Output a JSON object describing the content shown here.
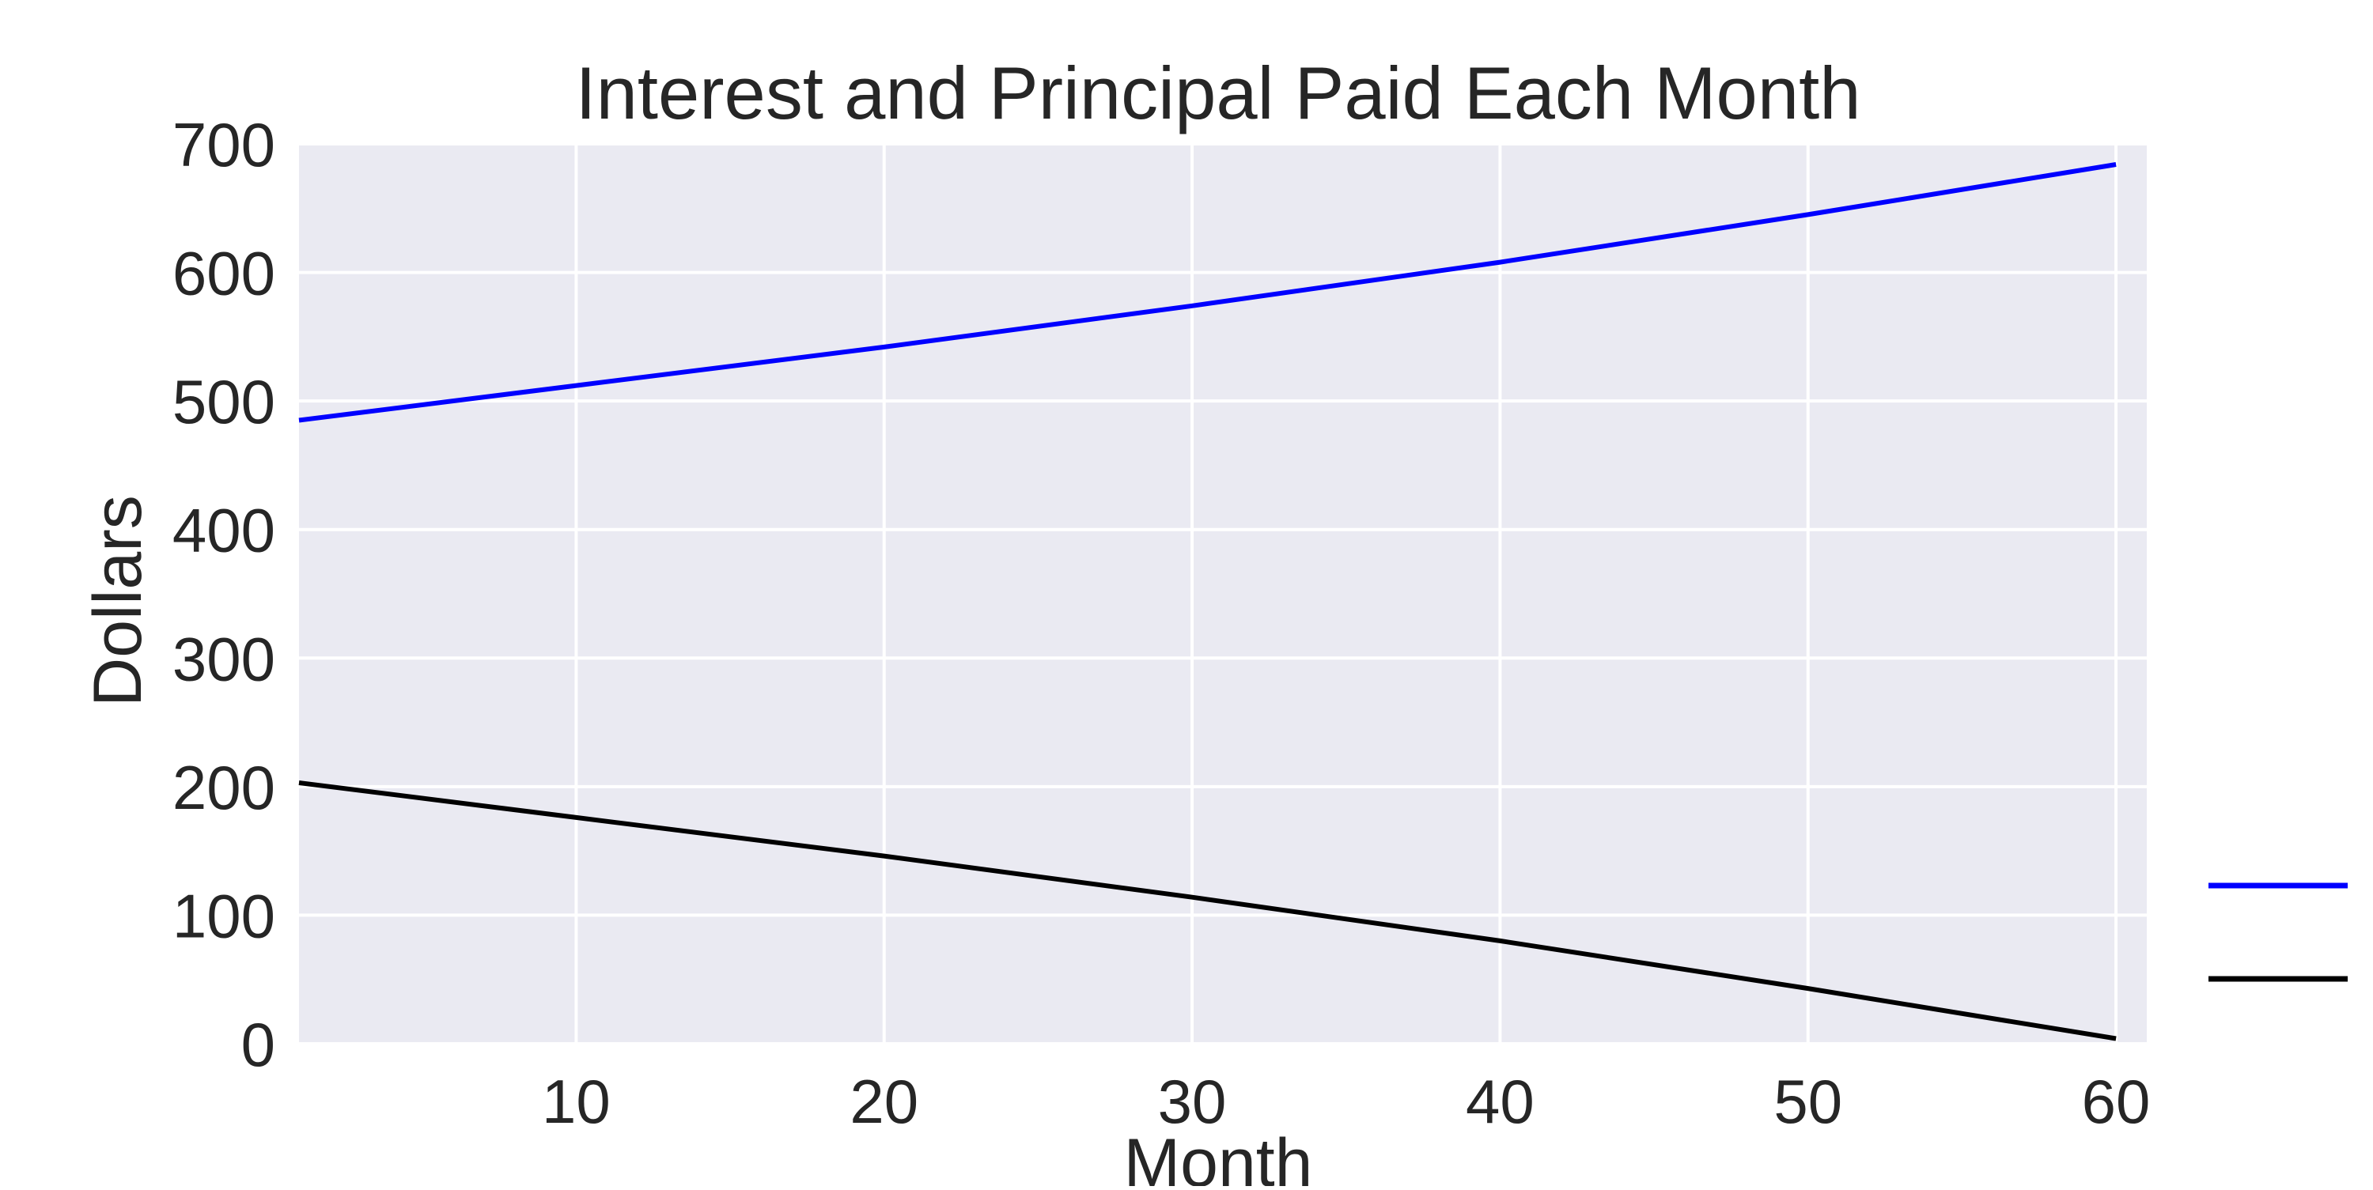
{
  "chart_data": {
    "type": "line",
    "title": "Interest and Principal Paid Each Month",
    "xlabel": "Month",
    "ylabel": "Dollars",
    "xlim": [
      1,
      61
    ],
    "ylim": [
      0,
      700
    ],
    "xticks": [
      10,
      20,
      30,
      40,
      50,
      60
    ],
    "yticks": [
      0,
      100,
      200,
      300,
      400,
      500,
      600,
      700
    ],
    "grid": true,
    "legend_position": "right",
    "background_color": "#eaeaf2",
    "grid_color": "#ffffff",
    "series": [
      {
        "color": "#0000ff",
        "x": [
          1,
          10,
          20,
          30,
          40,
          50,
          60
        ],
        "y": [
          485,
          512,
          542,
          574,
          608,
          645,
          684
        ]
      },
      {
        "color": "#000000",
        "x": [
          1,
          10,
          20,
          30,
          40,
          50,
          60
        ],
        "y": [
          203,
          176,
          146,
          114,
          80,
          43,
          4
        ]
      }
    ]
  }
}
